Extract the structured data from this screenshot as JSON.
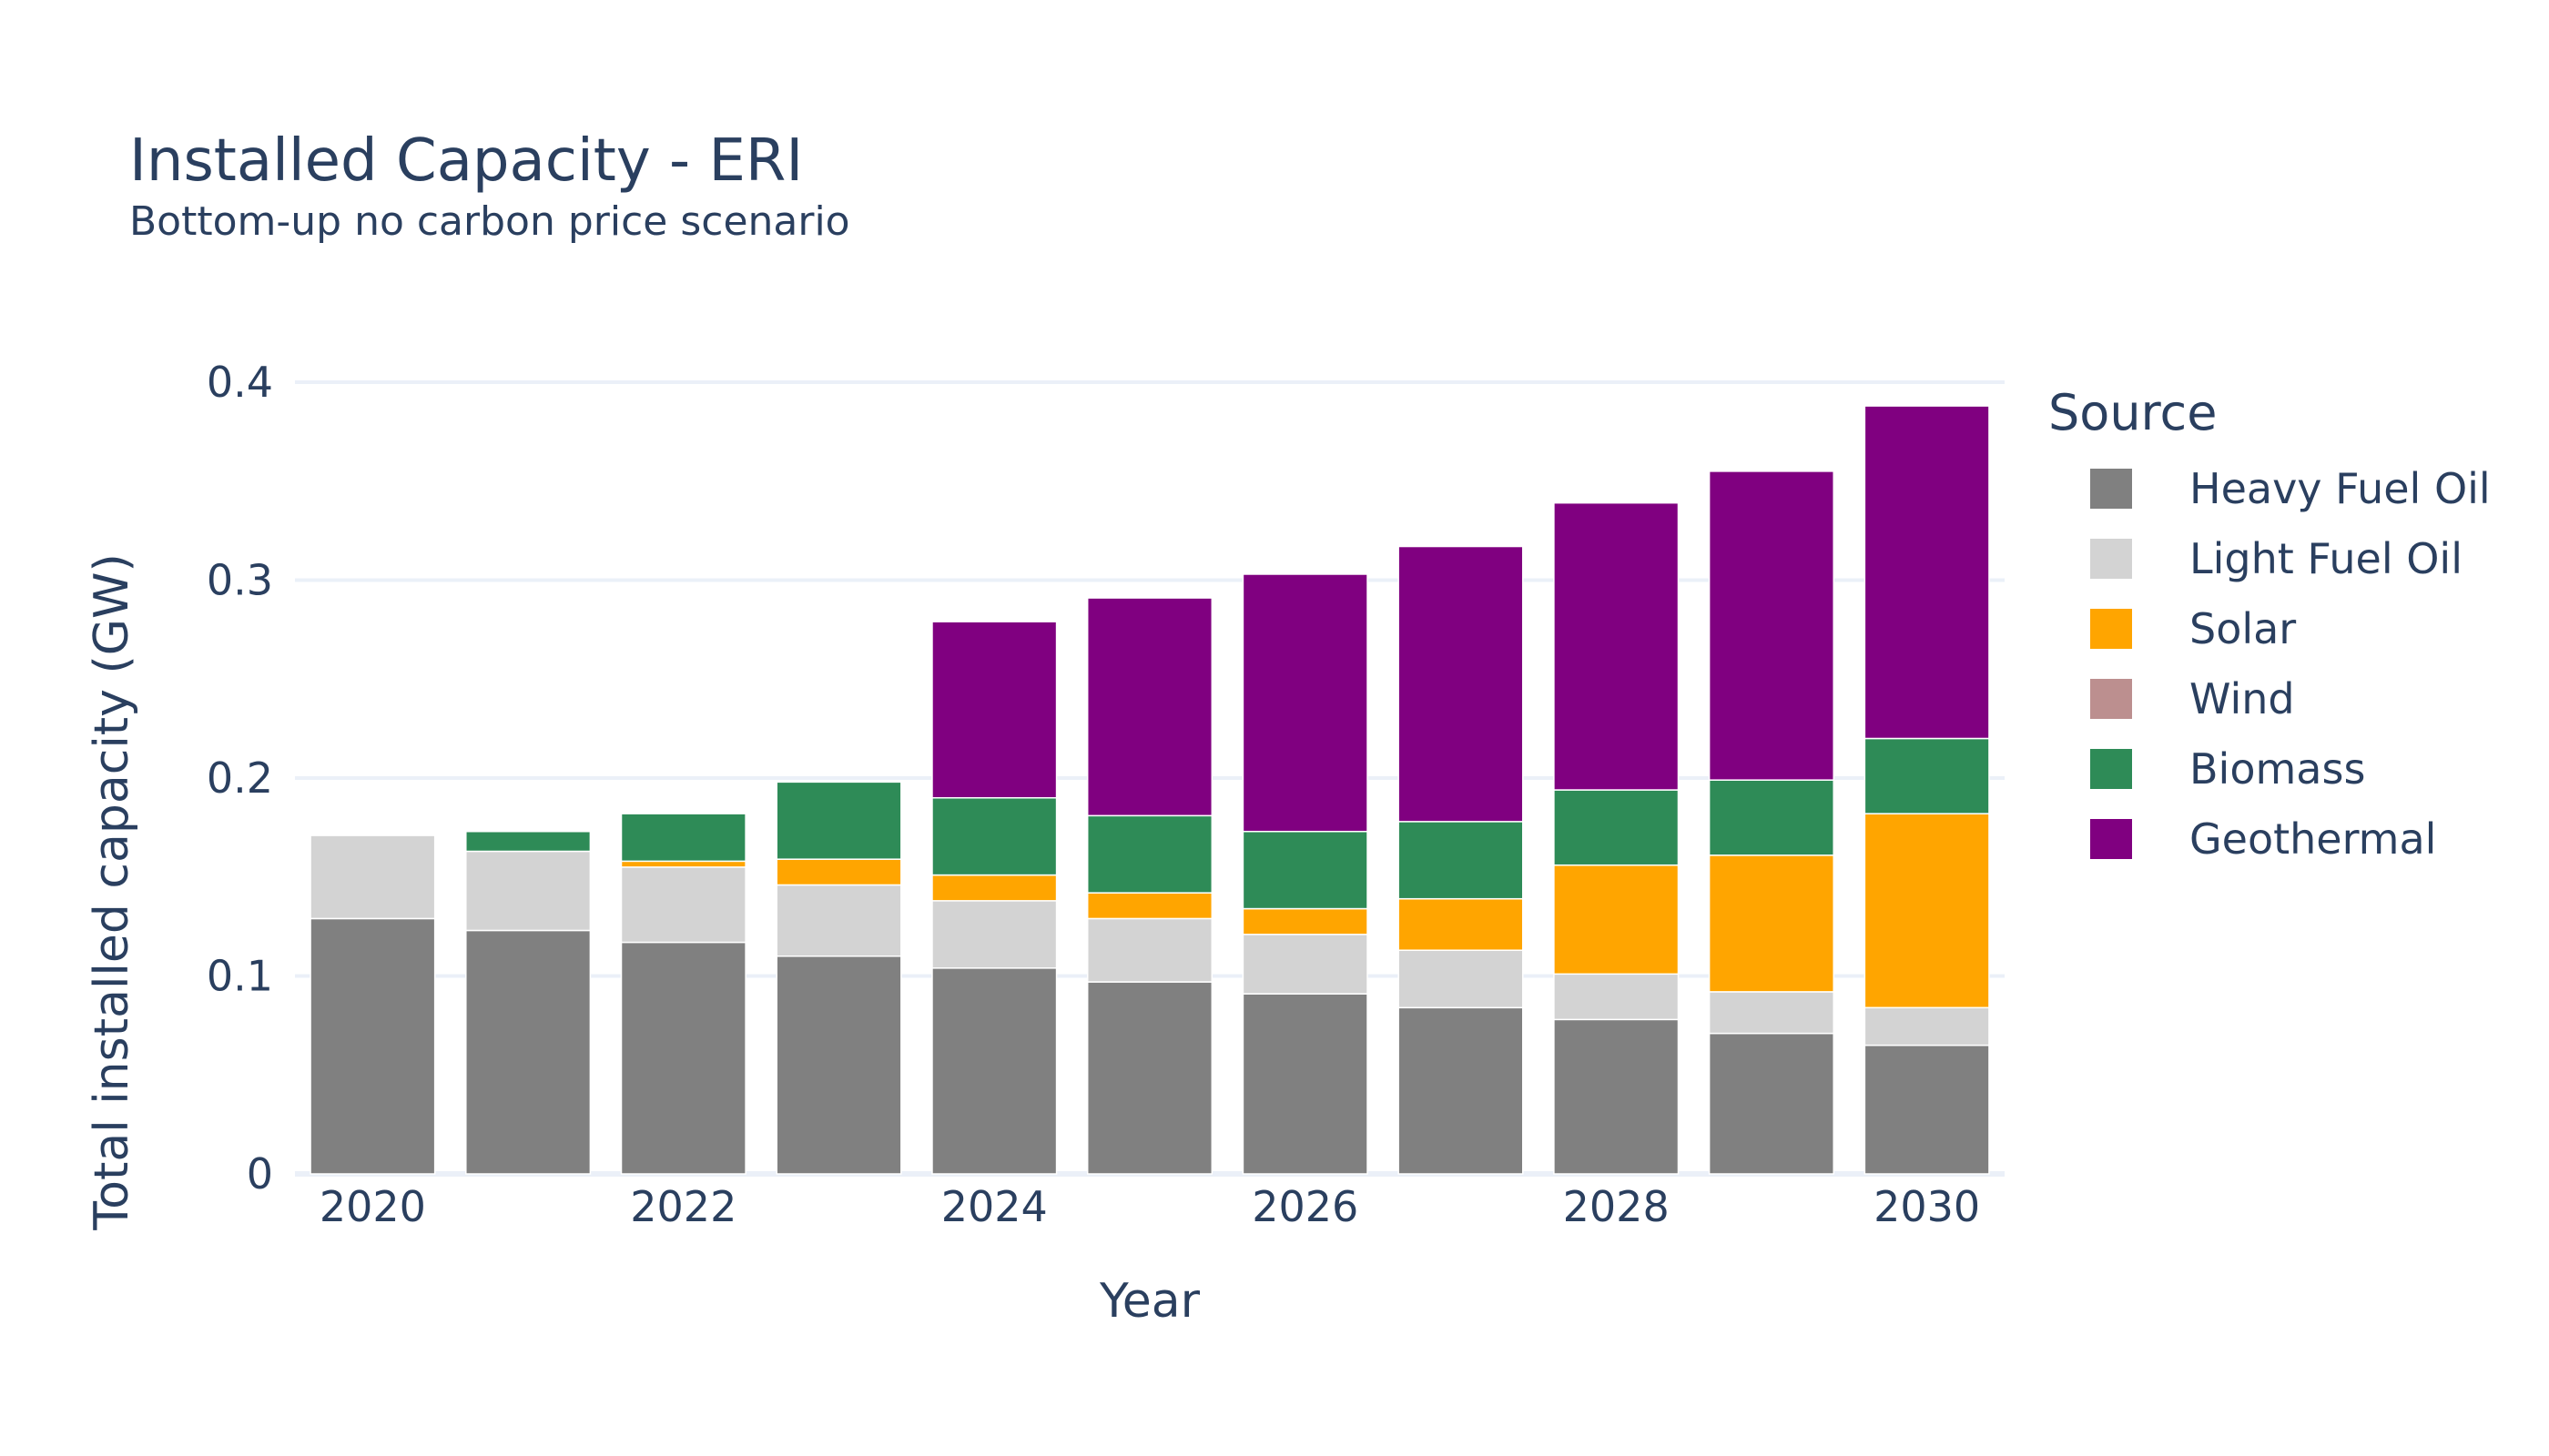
{
  "chart_data": {
    "type": "bar",
    "stacked": true,
    "title": "Installed Capacity - ERI",
    "subtitle": "Bottom-up no carbon price scenario",
    "xlabel": "Year",
    "ylabel": "Total installed capacity (GW)",
    "ylim": [
      0,
      0.4
    ],
    "yticks": [
      0,
      0.1,
      0.2,
      0.3,
      0.4
    ],
    "ytick_labels": [
      "0",
      "0.1",
      "0.2",
      "0.3",
      "0.4"
    ],
    "xticks": [
      2020,
      2022,
      2024,
      2026,
      2028,
      2030
    ],
    "xtick_labels": [
      "2020",
      "2022",
      "2024",
      "2026",
      "2028",
      "2030"
    ],
    "grid": true,
    "legend_title": "Source",
    "legend_position": "right",
    "x": [
      2020,
      2021,
      2022,
      2023,
      2024,
      2025,
      2026,
      2027,
      2028,
      2029,
      2030
    ],
    "series": [
      {
        "name": "Heavy Fuel Oil",
        "color": "#808080",
        "values": [
          0.129,
          0.123,
          0.117,
          0.11,
          0.104,
          0.097,
          0.091,
          0.084,
          0.078,
          0.071,
          0.065
        ]
      },
      {
        "name": "Light Fuel Oil",
        "color": "#d3d3d3",
        "values": [
          0.042,
          0.04,
          0.038,
          0.036,
          0.034,
          0.032,
          0.03,
          0.029,
          0.023,
          0.021,
          0.019
        ]
      },
      {
        "name": "Solar",
        "color": "#ffa500",
        "values": [
          0,
          0,
          0.003,
          0.013,
          0.013,
          0.013,
          0.013,
          0.026,
          0.055,
          0.069,
          0.098
        ]
      },
      {
        "name": "Wind",
        "color": "#bc8f8f",
        "values": [
          0,
          0,
          0,
          0,
          0,
          0,
          0,
          0,
          0,
          0,
          0
        ]
      },
      {
        "name": "Biomass",
        "color": "#2e8b57",
        "values": [
          0,
          0.01,
          0.024,
          0.039,
          0.039,
          0.039,
          0.039,
          0.039,
          0.038,
          0.038,
          0.038
        ]
      },
      {
        "name": "Geothermal",
        "color": "#800080",
        "values": [
          0,
          0,
          0,
          0,
          0.089,
          0.11,
          0.13,
          0.139,
          0.145,
          0.156,
          0.168
        ]
      }
    ]
  }
}
